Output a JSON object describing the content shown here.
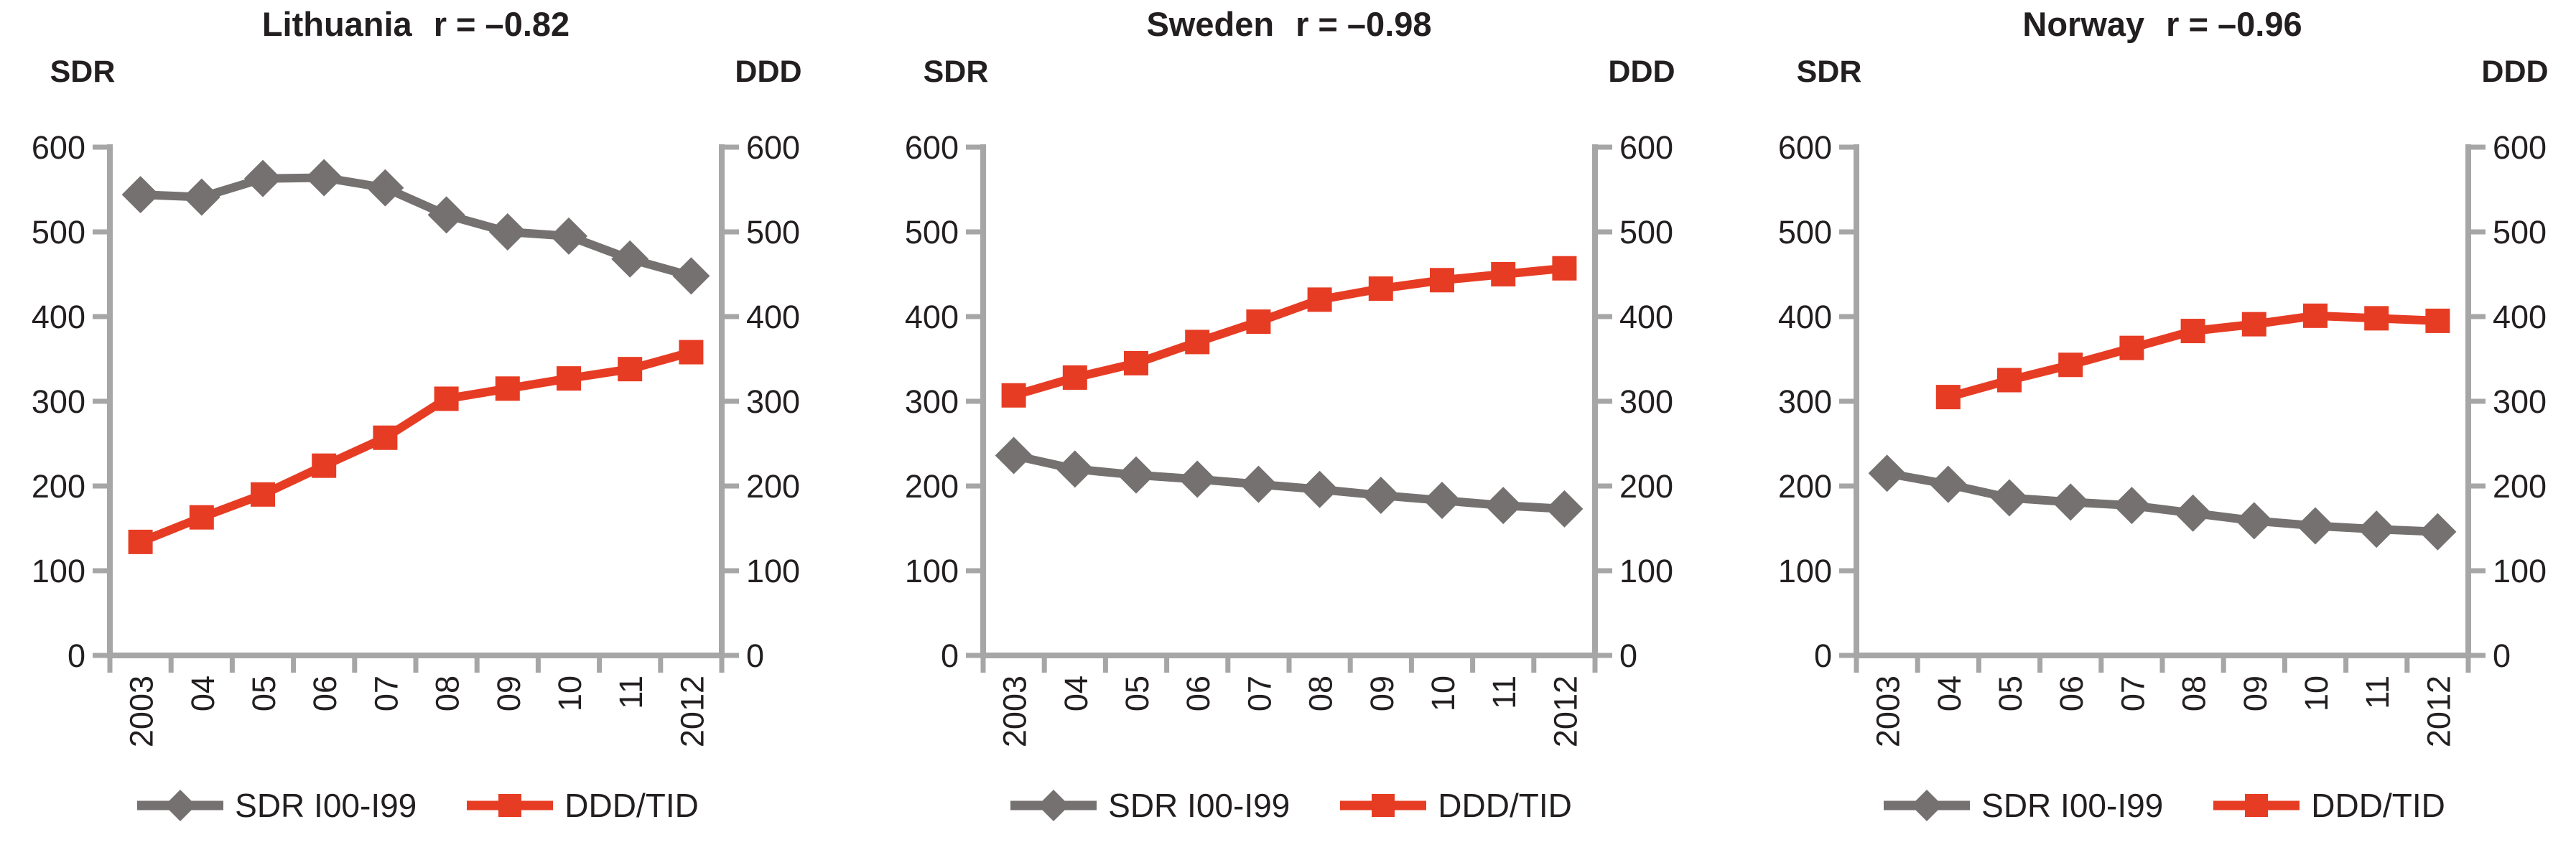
{
  "figure": {
    "background": "#ffffff",
    "axis_color": "#a6a6a6",
    "text_color": "#231f20"
  },
  "chart_data": [
    {
      "type": "line",
      "title": "Lithuania",
      "r_label": "r = –0.82",
      "left_axis_title": "SDR",
      "right_axis_title": "DDD",
      "categories": [
        "2003",
        "04",
        "05",
        "06",
        "07",
        "08",
        "09",
        "10",
        "11",
        "2012"
      ],
      "ylim": [
        0,
        600
      ],
      "ytick_step": 100,
      "grid": false,
      "legend_position": "bottom",
      "series": [
        {
          "name": "SDR I00-I99",
          "axis": "left",
          "color": "#747170",
          "marker": "diamond",
          "values": [
            544,
            541,
            563,
            564,
            552,
            520,
            500,
            495,
            468,
            448
          ]
        },
        {
          "name": "DDD/TID",
          "axis": "right",
          "color": "#e73c24",
          "marker": "square",
          "values": [
            134,
            163,
            190,
            224,
            257,
            303,
            315,
            327,
            338,
            358
          ]
        }
      ]
    },
    {
      "type": "line",
      "title": "Sweden",
      "r_label": "r = –0.98",
      "left_axis_title": "SDR",
      "right_axis_title": "DDD",
      "categories": [
        "2003",
        "04",
        "05",
        "06",
        "07",
        "08",
        "09",
        "10",
        "11",
        "2012"
      ],
      "ylim": [
        0,
        600
      ],
      "ytick_step": 100,
      "grid": false,
      "legend_position": "bottom",
      "series": [
        {
          "name": "SDR I00-I99",
          "axis": "left",
          "color": "#747170",
          "marker": "diamond",
          "values": [
            236,
            220,
            213,
            208,
            202,
            196,
            189,
            183,
            177,
            173
          ]
        },
        {
          "name": "DDD/TID",
          "axis": "right",
          "color": "#e73c24",
          "marker": "square",
          "values": [
            307,
            328,
            345,
            370,
            394,
            420,
            433,
            443,
            450,
            457
          ]
        }
      ]
    },
    {
      "type": "line",
      "title": "Norway",
      "r_label": "r = –0.96",
      "left_axis_title": "SDR",
      "right_axis_title": "DDD",
      "categories": [
        "2003",
        "04",
        "05",
        "06",
        "07",
        "08",
        "09",
        "10",
        "11",
        "2012"
      ],
      "ylim": [
        0,
        600
      ],
      "ytick_step": 100,
      "grid": false,
      "legend_position": "bottom",
      "series": [
        {
          "name": "SDR I00-I99",
          "axis": "left",
          "color": "#747170",
          "marker": "diamond",
          "values": [
            215,
            202,
            186,
            181,
            177,
            168,
            159,
            153,
            149,
            146
          ]
        },
        {
          "name": "DDD/TID",
          "axis": "right",
          "color": "#e73c24",
          "marker": "square",
          "values": [
            null,
            305,
            325,
            343,
            363,
            383,
            391,
            401,
            398,
            395
          ]
        }
      ]
    }
  ]
}
